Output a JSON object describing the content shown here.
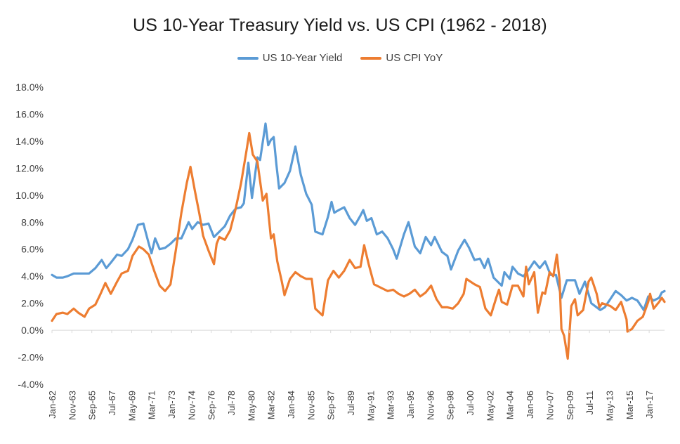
{
  "chart_data": {
    "type": "line",
    "title": "US 10-Year Treasury Yield vs. US CPI (1962 - 2018)",
    "xlabel": "",
    "ylabel": "",
    "ylim": [
      -4.0,
      18.0
    ],
    "y_unit": "%",
    "y_ticks": [
      "18.0%",
      "16.0%",
      "14.0%",
      "12.0%",
      "10.0%",
      "8.0%",
      "6.0%",
      "4.0%",
      "2.0%",
      "0.0%",
      "-2.0%",
      "-4.0%"
    ],
    "x_tick_labels": [
      "Jan-62",
      "Nov-63",
      "Sep-65",
      "Jul-67",
      "May-69",
      "Mar-71",
      "Jan-73",
      "Nov-74",
      "Sep-76",
      "Jul-78",
      "May-80",
      "Mar-82",
      "Jan-84",
      "Nov-85",
      "Sep-87",
      "Jul-89",
      "May-91",
      "Mar-93",
      "Jan-95",
      "Nov-96",
      "Sep-98",
      "Jul-00",
      "May-02",
      "Mar-04",
      "Jan-06",
      "Nov-07",
      "Sep-09",
      "Jul-11",
      "May-13",
      "Mar-15",
      "Jan-17"
    ],
    "x_range": [
      "1962-01",
      "2018-06"
    ],
    "grid": false,
    "legend_position": "top-center",
    "series": [
      {
        "name": "US 10-Year Yield",
        "color": "#5B9BD5",
        "points": [
          [
            "1962-01",
            4.1
          ],
          [
            "1962-06",
            3.9
          ],
          [
            "1963-01",
            3.9
          ],
          [
            "1963-06",
            4.0
          ],
          [
            "1964-01",
            4.2
          ],
          [
            "1964-06",
            4.2
          ],
          [
            "1965-01",
            4.2
          ],
          [
            "1965-06",
            4.2
          ],
          [
            "1966-01",
            4.6
          ],
          [
            "1966-08",
            5.2
          ],
          [
            "1967-01",
            4.6
          ],
          [
            "1967-06",
            5.0
          ],
          [
            "1968-01",
            5.6
          ],
          [
            "1968-06",
            5.5
          ],
          [
            "1969-01",
            6.0
          ],
          [
            "1969-06",
            6.7
          ],
          [
            "1969-12",
            7.8
          ],
          [
            "1970-06",
            7.9
          ],
          [
            "1970-12",
            6.4
          ],
          [
            "1971-03",
            5.7
          ],
          [
            "1971-07",
            6.8
          ],
          [
            "1971-12",
            6.0
          ],
          [
            "1972-06",
            6.1
          ],
          [
            "1972-12",
            6.4
          ],
          [
            "1973-06",
            6.8
          ],
          [
            "1973-12",
            6.8
          ],
          [
            "1974-08",
            8.0
          ],
          [
            "1974-12",
            7.5
          ],
          [
            "1975-06",
            8.0
          ],
          [
            "1975-12",
            7.8
          ],
          [
            "1976-06",
            7.9
          ],
          [
            "1976-12",
            6.9
          ],
          [
            "1977-06",
            7.3
          ],
          [
            "1977-12",
            7.7
          ],
          [
            "1978-06",
            8.5
          ],
          [
            "1978-12",
            9.0
          ],
          [
            "1979-06",
            9.1
          ],
          [
            "1979-09",
            9.4
          ],
          [
            "1980-02",
            12.4
          ],
          [
            "1980-06",
            9.8
          ],
          [
            "1980-12",
            12.8
          ],
          [
            "1981-03",
            12.6
          ],
          [
            "1981-09",
            15.3
          ],
          [
            "1981-12",
            13.7
          ],
          [
            "1982-03",
            14.1
          ],
          [
            "1982-06",
            14.3
          ],
          [
            "1982-09",
            12.3
          ],
          [
            "1982-12",
            10.5
          ],
          [
            "1983-06",
            10.9
          ],
          [
            "1983-12",
            11.8
          ],
          [
            "1984-06",
            13.6
          ],
          [
            "1984-12",
            11.5
          ],
          [
            "1985-06",
            10.1
          ],
          [
            "1985-12",
            9.3
          ],
          [
            "1986-04",
            7.3
          ],
          [
            "1986-12",
            7.1
          ],
          [
            "1987-06",
            8.4
          ],
          [
            "1987-10",
            9.5
          ],
          [
            "1988-01",
            8.7
          ],
          [
            "1988-06",
            8.9
          ],
          [
            "1988-12",
            9.1
          ],
          [
            "1989-06",
            8.3
          ],
          [
            "1989-12",
            7.8
          ],
          [
            "1990-06",
            8.5
          ],
          [
            "1990-09",
            8.9
          ],
          [
            "1991-01",
            8.1
          ],
          [
            "1991-06",
            8.3
          ],
          [
            "1991-12",
            7.1
          ],
          [
            "1992-06",
            7.3
          ],
          [
            "1992-12",
            6.8
          ],
          [
            "1993-06",
            6.0
          ],
          [
            "1993-10",
            5.3
          ],
          [
            "1994-06",
            7.1
          ],
          [
            "1994-11",
            8.0
          ],
          [
            "1995-06",
            6.2
          ],
          [
            "1995-12",
            5.7
          ],
          [
            "1996-06",
            6.9
          ],
          [
            "1996-12",
            6.3
          ],
          [
            "1997-04",
            6.9
          ],
          [
            "1997-12",
            5.8
          ],
          [
            "1998-06",
            5.5
          ],
          [
            "1998-10",
            4.5
          ],
          [
            "1999-06",
            5.9
          ],
          [
            "2000-01",
            6.7
          ],
          [
            "2000-06",
            6.1
          ],
          [
            "2000-12",
            5.2
          ],
          [
            "2001-06",
            5.3
          ],
          [
            "2001-11",
            4.6
          ],
          [
            "2002-03",
            5.3
          ],
          [
            "2002-09",
            3.9
          ],
          [
            "2003-06",
            3.3
          ],
          [
            "2003-09",
            4.3
          ],
          [
            "2004-03",
            3.8
          ],
          [
            "2004-06",
            4.7
          ],
          [
            "2004-12",
            4.2
          ],
          [
            "2005-06",
            4.0
          ],
          [
            "2005-12",
            4.5
          ],
          [
            "2006-06",
            5.1
          ],
          [
            "2006-12",
            4.6
          ],
          [
            "2007-06",
            5.1
          ],
          [
            "2007-12",
            4.1
          ],
          [
            "2008-06",
            4.1
          ],
          [
            "2008-12",
            2.4
          ],
          [
            "2009-06",
            3.7
          ],
          [
            "2010-03",
            3.7
          ],
          [
            "2010-08",
            2.7
          ],
          [
            "2011-02",
            3.6
          ],
          [
            "2011-09",
            2.0
          ],
          [
            "2012-07",
            1.5
          ],
          [
            "2012-12",
            1.7
          ],
          [
            "2013-06",
            2.3
          ],
          [
            "2013-12",
            2.9
          ],
          [
            "2014-06",
            2.6
          ],
          [
            "2014-12",
            2.2
          ],
          [
            "2015-06",
            2.4
          ],
          [
            "2015-12",
            2.2
          ],
          [
            "2016-07",
            1.5
          ],
          [
            "2016-12",
            2.5
          ],
          [
            "2017-06",
            2.2
          ],
          [
            "2017-12",
            2.4
          ],
          [
            "2018-03",
            2.8
          ],
          [
            "2018-06",
            2.9
          ]
        ]
      },
      {
        "name": "US CPI YoY",
        "color": "#ED7D31",
        "points": [
          [
            "1962-01",
            0.7
          ],
          [
            "1962-06",
            1.2
          ],
          [
            "1963-01",
            1.3
          ],
          [
            "1963-06",
            1.2
          ],
          [
            "1964-01",
            1.6
          ],
          [
            "1964-06",
            1.3
          ],
          [
            "1965-01",
            1.0
          ],
          [
            "1965-06",
            1.6
          ],
          [
            "1966-01",
            1.9
          ],
          [
            "1966-06",
            2.6
          ],
          [
            "1966-12",
            3.5
          ],
          [
            "1967-06",
            2.7
          ],
          [
            "1968-01",
            3.6
          ],
          [
            "1968-06",
            4.2
          ],
          [
            "1969-01",
            4.4
          ],
          [
            "1969-06",
            5.5
          ],
          [
            "1970-01",
            6.2
          ],
          [
            "1970-06",
            6.0
          ],
          [
            "1970-12",
            5.6
          ],
          [
            "1971-06",
            4.4
          ],
          [
            "1971-12",
            3.3
          ],
          [
            "1972-06",
            2.9
          ],
          [
            "1972-12",
            3.4
          ],
          [
            "1973-06",
            6.0
          ],
          [
            "1973-12",
            8.7
          ],
          [
            "1974-06",
            10.9
          ],
          [
            "1974-10",
            12.1
          ],
          [
            "1975-03",
            10.3
          ],
          [
            "1975-08",
            8.6
          ],
          [
            "1975-12",
            7.0
          ],
          [
            "1976-06",
            5.9
          ],
          [
            "1976-12",
            4.9
          ],
          [
            "1977-03",
            6.4
          ],
          [
            "1977-06",
            6.9
          ],
          [
            "1977-12",
            6.7
          ],
          [
            "1978-06",
            7.4
          ],
          [
            "1978-12",
            9.0
          ],
          [
            "1979-06",
            10.9
          ],
          [
            "1979-12",
            13.3
          ],
          [
            "1980-03",
            14.6
          ],
          [
            "1980-07",
            13.0
          ],
          [
            "1980-12",
            12.5
          ],
          [
            "1981-06",
            9.6
          ],
          [
            "1981-10",
            10.1
          ],
          [
            "1982-03",
            6.8
          ],
          [
            "1982-06",
            7.1
          ],
          [
            "1982-10",
            5.1
          ],
          [
            "1983-03",
            3.6
          ],
          [
            "1983-06",
            2.6
          ],
          [
            "1983-12",
            3.8
          ],
          [
            "1984-06",
            4.3
          ],
          [
            "1984-12",
            4.0
          ],
          [
            "1985-06",
            3.8
          ],
          [
            "1985-12",
            3.8
          ],
          [
            "1986-04",
            1.6
          ],
          [
            "1986-12",
            1.1
          ],
          [
            "1987-06",
            3.7
          ],
          [
            "1987-12",
            4.4
          ],
          [
            "1988-06",
            3.9
          ],
          [
            "1988-12",
            4.4
          ],
          [
            "1989-06",
            5.2
          ],
          [
            "1989-12",
            4.6
          ],
          [
            "1990-06",
            4.7
          ],
          [
            "1990-10",
            6.3
          ],
          [
            "1991-03",
            4.9
          ],
          [
            "1991-09",
            3.4
          ],
          [
            "1992-06",
            3.1
          ],
          [
            "1992-12",
            2.9
          ],
          [
            "1993-06",
            3.0
          ],
          [
            "1993-12",
            2.7
          ],
          [
            "1994-06",
            2.5
          ],
          [
            "1994-12",
            2.7
          ],
          [
            "1995-06",
            3.0
          ],
          [
            "1995-12",
            2.5
          ],
          [
            "1996-06",
            2.8
          ],
          [
            "1996-12",
            3.3
          ],
          [
            "1997-06",
            2.3
          ],
          [
            "1997-12",
            1.7
          ],
          [
            "1998-06",
            1.7
          ],
          [
            "1998-12",
            1.6
          ],
          [
            "1999-06",
            2.0
          ],
          [
            "1999-12",
            2.7
          ],
          [
            "2000-03",
            3.8
          ],
          [
            "2000-12",
            3.4
          ],
          [
            "2001-06",
            3.2
          ],
          [
            "2001-12",
            1.6
          ],
          [
            "2002-06",
            1.1
          ],
          [
            "2002-12",
            2.4
          ],
          [
            "2003-03",
            3.0
          ],
          [
            "2003-06",
            2.1
          ],
          [
            "2003-12",
            1.9
          ],
          [
            "2004-06",
            3.3
          ],
          [
            "2004-12",
            3.3
          ],
          [
            "2005-06",
            2.5
          ],
          [
            "2005-09",
            4.7
          ],
          [
            "2005-12",
            3.4
          ],
          [
            "2006-06",
            4.3
          ],
          [
            "2006-10",
            1.3
          ],
          [
            "2007-03",
            2.8
          ],
          [
            "2007-06",
            2.7
          ],
          [
            "2007-11",
            4.3
          ],
          [
            "2008-03",
            4.0
          ],
          [
            "2008-07",
            5.6
          ],
          [
            "2008-10",
            3.7
          ],
          [
            "2008-12",
            0.1
          ],
          [
            "2009-03",
            -0.4
          ],
          [
            "2009-07",
            -2.1
          ],
          [
            "2009-11",
            1.8
          ],
          [
            "2010-03",
            2.3
          ],
          [
            "2010-06",
            1.1
          ],
          [
            "2010-12",
            1.5
          ],
          [
            "2011-06",
            3.6
          ],
          [
            "2011-09",
            3.9
          ],
          [
            "2012-03",
            2.7
          ],
          [
            "2012-06",
            1.7
          ],
          [
            "2012-09",
            2.0
          ],
          [
            "2013-06",
            1.8
          ],
          [
            "2013-12",
            1.5
          ],
          [
            "2014-06",
            2.1
          ],
          [
            "2014-12",
            0.8
          ],
          [
            "2015-01",
            -0.1
          ],
          [
            "2015-06",
            0.1
          ],
          [
            "2015-12",
            0.7
          ],
          [
            "2016-06",
            1.0
          ],
          [
            "2016-12",
            2.1
          ],
          [
            "2017-02",
            2.7
          ],
          [
            "2017-06",
            1.6
          ],
          [
            "2017-12",
            2.1
          ],
          [
            "2018-03",
            2.4
          ],
          [
            "2018-06",
            2.1
          ]
        ]
      }
    ]
  }
}
